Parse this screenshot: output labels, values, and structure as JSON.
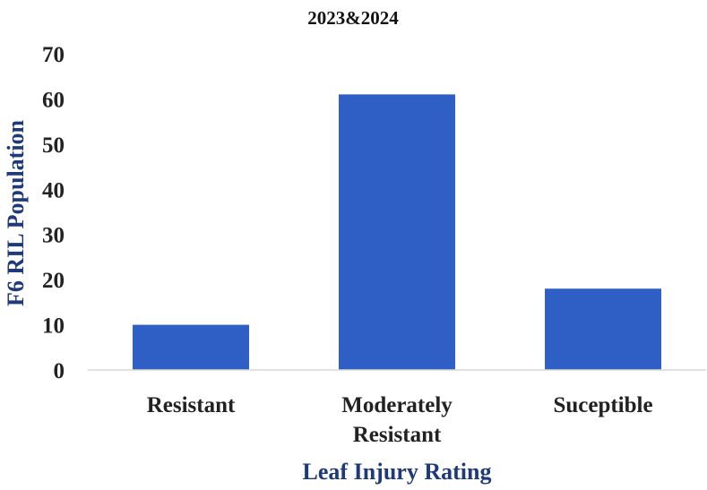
{
  "chart_data": {
    "type": "bar",
    "title": "2023&2024",
    "xlabel": "Leaf Injury Rating",
    "ylabel": "F6 RIL Population",
    "categories": [
      [
        "Resistant"
      ],
      [
        "Moderately",
        "Resistant"
      ],
      [
        "Suceptible"
      ]
    ],
    "values": [
      10,
      61,
      18
    ],
    "ylim": [
      0,
      70
    ],
    "yticks": [
      "0",
      "10",
      "20",
      "30",
      "40",
      "50",
      "60",
      "70"
    ],
    "grid": false,
    "legend": "none",
    "colors": {
      "bar": "#2f5ec4",
      "axis_label": "#1f3a7a",
      "axis_line": "#d9d9d9"
    }
  }
}
